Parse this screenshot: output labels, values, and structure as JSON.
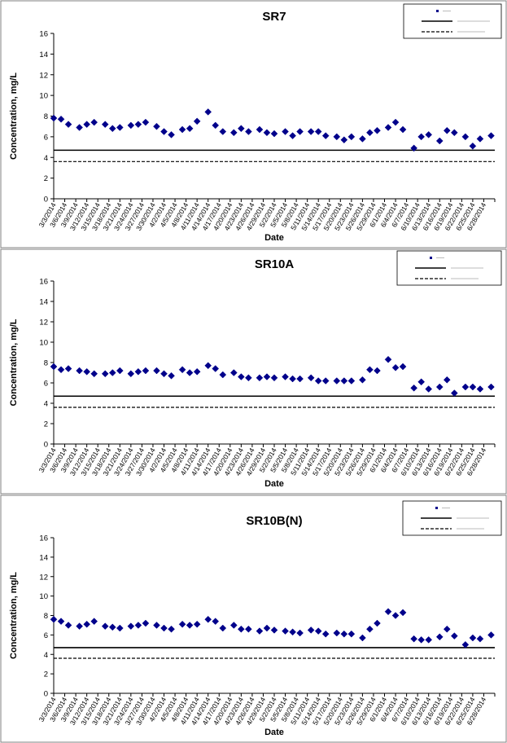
{
  "dates": [
    "3/3/2014",
    "3/6/2014",
    "3/9/2014",
    "3/12/2014",
    "3/15/2014",
    "3/18/2014",
    "3/21/2014",
    "3/24/2014",
    "3/27/2014",
    "3/30/2014",
    "4/2/2014",
    "4/5/2014",
    "4/8/2014",
    "4/11/2014",
    "4/14/2014",
    "4/17/2014",
    "4/20/2014",
    "4/23/2014",
    "4/26/2014",
    "4/29/2014",
    "5/2/2014",
    "5/5/2014",
    "5/8/2014",
    "5/11/2014",
    "5/14/2014",
    "5/17/2014",
    "5/20/2014",
    "5/23/2014",
    "5/26/2014",
    "5/29/2014",
    "6/1/2014",
    "6/4/2014",
    "6/7/2014",
    "6/10/2014",
    "6/13/2014",
    "6/16/2014",
    "6/19/2014",
    "6/22/2014",
    "6/25/2014",
    "6/28/2014"
  ],
  "chart_data": [
    {
      "type": "scatter",
      "title": "SR7",
      "xlabel": "Date",
      "ylabel": "Concentration, mg/L",
      "ylim": [
        0,
        16
      ],
      "yticks": [
        0,
        2,
        4,
        6,
        8,
        10,
        12,
        14,
        16
      ],
      "xlim": [
        "3/3/2014",
        "7/1/2014"
      ],
      "grid": false,
      "legend": "top-right",
      "marker_color": "#00008b",
      "reference_lines": [
        {
          "style": "solid",
          "y": 4.7
        },
        {
          "style": "dashed",
          "y": 3.6
        }
      ],
      "points": [
        [
          "3/3/2014",
          7.8
        ],
        [
          "3/5/2014",
          7.7
        ],
        [
          "3/7/2014",
          7.2
        ],
        [
          "3/10/2014",
          6.9
        ],
        [
          "3/12/2014",
          7.2
        ],
        [
          "3/14/2014",
          7.4
        ],
        [
          "3/17/2014",
          7.2
        ],
        [
          "3/19/2014",
          6.8
        ],
        [
          "3/21/2014",
          6.9
        ],
        [
          "3/24/2014",
          7.1
        ],
        [
          "3/26/2014",
          7.2
        ],
        [
          "3/28/2014",
          7.4
        ],
        [
          "3/31/2014",
          7.0
        ],
        [
          "4/2/2014",
          6.5
        ],
        [
          "4/4/2014",
          6.2
        ],
        [
          "4/7/2014",
          6.7
        ],
        [
          "4/9/2014",
          6.8
        ],
        [
          "4/11/2014",
          7.5
        ],
        [
          "4/14/2014",
          8.4
        ],
        [
          "4/16/2014",
          7.1
        ],
        [
          "4/18/2014",
          6.5
        ],
        [
          "4/21/2014",
          6.4
        ],
        [
          "4/23/2014",
          6.8
        ],
        [
          "4/25/2014",
          6.5
        ],
        [
          "4/28/2014",
          6.7
        ],
        [
          "4/30/2014",
          6.4
        ],
        [
          "5/2/2014",
          6.3
        ],
        [
          "5/5/2014",
          6.5
        ],
        [
          "5/7/2014",
          6.1
        ],
        [
          "5/9/2014",
          6.5
        ],
        [
          "5/12/2014",
          6.5
        ],
        [
          "5/14/2014",
          6.5
        ],
        [
          "5/16/2014",
          6.1
        ],
        [
          "5/19/2014",
          6.0
        ],
        [
          "5/21/2014",
          5.7
        ],
        [
          "5/23/2014",
          6.0
        ],
        [
          "5/26/2014",
          5.8
        ],
        [
          "5/28/2014",
          6.4
        ],
        [
          "5/30/2014",
          6.6
        ],
        [
          "6/2/2014",
          6.9
        ],
        [
          "6/4/2014",
          7.4
        ],
        [
          "6/6/2014",
          6.7
        ],
        [
          "6/9/2014",
          4.9
        ],
        [
          "6/11/2014",
          6.0
        ],
        [
          "6/13/2014",
          6.2
        ],
        [
          "6/16/2014",
          5.6
        ],
        [
          "6/18/2014",
          6.6
        ],
        [
          "6/20/2014",
          6.4
        ],
        [
          "6/23/2014",
          6.0
        ],
        [
          "6/25/2014",
          5.1
        ],
        [
          "6/27/2014",
          5.8
        ],
        [
          "6/30/2014",
          6.1
        ]
      ]
    },
    {
      "type": "scatter",
      "title": "SR10A",
      "xlabel": "Date",
      "ylabel": "Concentration, mg/L",
      "ylim": [
        0,
        16
      ],
      "yticks": [
        0,
        2,
        4,
        6,
        8,
        10,
        12,
        14,
        16
      ],
      "xlim": [
        "3/3/2014",
        "7/1/2014"
      ],
      "grid": false,
      "legend": "top-right",
      "marker_color": "#00008b",
      "reference_lines": [
        {
          "style": "solid",
          "y": 4.7
        },
        {
          "style": "dashed",
          "y": 3.6
        }
      ],
      "points": [
        [
          "3/3/2014",
          7.6
        ],
        [
          "3/5/2014",
          7.3
        ],
        [
          "3/7/2014",
          7.4
        ],
        [
          "3/10/2014",
          7.2
        ],
        [
          "3/12/2014",
          7.1
        ],
        [
          "3/14/2014",
          6.9
        ],
        [
          "3/17/2014",
          6.9
        ],
        [
          "3/19/2014",
          7.0
        ],
        [
          "3/21/2014",
          7.2
        ],
        [
          "3/24/2014",
          6.9
        ],
        [
          "3/26/2014",
          7.1
        ],
        [
          "3/28/2014",
          7.2
        ],
        [
          "3/31/2014",
          7.2
        ],
        [
          "4/2/2014",
          6.9
        ],
        [
          "4/4/2014",
          6.7
        ],
        [
          "4/7/2014",
          7.3
        ],
        [
          "4/9/2014",
          7.0
        ],
        [
          "4/11/2014",
          7.1
        ],
        [
          "4/14/2014",
          7.7
        ],
        [
          "4/16/2014",
          7.4
        ],
        [
          "4/18/2014",
          6.8
        ],
        [
          "4/21/2014",
          7.0
        ],
        [
          "4/23/2014",
          6.6
        ],
        [
          "4/25/2014",
          6.5
        ],
        [
          "4/28/2014",
          6.5
        ],
        [
          "4/30/2014",
          6.6
        ],
        [
          "5/2/2014",
          6.5
        ],
        [
          "5/5/2014",
          6.6
        ],
        [
          "5/7/2014",
          6.4
        ],
        [
          "5/9/2014",
          6.4
        ],
        [
          "5/12/2014",
          6.5
        ],
        [
          "5/14/2014",
          6.2
        ],
        [
          "5/16/2014",
          6.2
        ],
        [
          "5/19/2014",
          6.2
        ],
        [
          "5/21/2014",
          6.2
        ],
        [
          "5/23/2014",
          6.2
        ],
        [
          "5/26/2014",
          6.3
        ],
        [
          "5/28/2014",
          7.3
        ],
        [
          "5/30/2014",
          7.2
        ],
        [
          "6/2/2014",
          8.3
        ],
        [
          "6/4/2014",
          7.5
        ],
        [
          "6/6/2014",
          7.6
        ],
        [
          "6/9/2014",
          5.5
        ],
        [
          "6/11/2014",
          6.1
        ],
        [
          "6/13/2014",
          5.4
        ],
        [
          "6/16/2014",
          5.6
        ],
        [
          "6/18/2014",
          6.3
        ],
        [
          "6/20/2014",
          5.0
        ],
        [
          "6/23/2014",
          5.6
        ],
        [
          "6/25/2014",
          5.6
        ],
        [
          "6/27/2014",
          5.4
        ],
        [
          "6/30/2014",
          5.6
        ]
      ]
    },
    {
      "type": "scatter",
      "title": "SR10B(N)",
      "xlabel": "Date",
      "ylabel": "Concentration, mg/L",
      "ylim": [
        0,
        16
      ],
      "yticks": [
        0,
        2,
        4,
        6,
        8,
        10,
        12,
        14,
        16
      ],
      "xlim": [
        "3/3/2014",
        "7/1/2014"
      ],
      "grid": false,
      "legend": "top-right",
      "marker_color": "#00008b",
      "reference_lines": [
        {
          "style": "solid",
          "y": 4.7
        },
        {
          "style": "dashed",
          "y": 3.6
        }
      ],
      "points": [
        [
          "3/3/2014",
          7.6
        ],
        [
          "3/5/2014",
          7.4
        ],
        [
          "3/7/2014",
          7.0
        ],
        [
          "3/10/2014",
          6.9
        ],
        [
          "3/12/2014",
          7.1
        ],
        [
          "3/14/2014",
          7.4
        ],
        [
          "3/17/2014",
          6.9
        ],
        [
          "3/19/2014",
          6.8
        ],
        [
          "3/21/2014",
          6.7
        ],
        [
          "3/24/2014",
          6.9
        ],
        [
          "3/26/2014",
          7.0
        ],
        [
          "3/28/2014",
          7.2
        ],
        [
          "3/31/2014",
          7.0
        ],
        [
          "4/2/2014",
          6.7
        ],
        [
          "4/4/2014",
          6.6
        ],
        [
          "4/7/2014",
          7.1
        ],
        [
          "4/9/2014",
          7.0
        ],
        [
          "4/11/2014",
          7.1
        ],
        [
          "4/14/2014",
          7.6
        ],
        [
          "4/16/2014",
          7.4
        ],
        [
          "4/18/2014",
          6.7
        ],
        [
          "4/21/2014",
          7.0
        ],
        [
          "4/23/2014",
          6.6
        ],
        [
          "4/25/2014",
          6.6
        ],
        [
          "4/28/2014",
          6.4
        ],
        [
          "4/30/2014",
          6.7
        ],
        [
          "5/2/2014",
          6.5
        ],
        [
          "5/5/2014",
          6.4
        ],
        [
          "5/7/2014",
          6.3
        ],
        [
          "5/9/2014",
          6.2
        ],
        [
          "5/12/2014",
          6.5
        ],
        [
          "5/14/2014",
          6.4
        ],
        [
          "5/16/2014",
          6.1
        ],
        [
          "5/19/2014",
          6.2
        ],
        [
          "5/21/2014",
          6.1
        ],
        [
          "5/23/2014",
          6.1
        ],
        [
          "5/26/2014",
          5.7
        ],
        [
          "5/28/2014",
          6.6
        ],
        [
          "5/30/2014",
          7.2
        ],
        [
          "6/2/2014",
          8.4
        ],
        [
          "6/4/2014",
          8.0
        ],
        [
          "6/6/2014",
          8.3
        ],
        [
          "6/9/2014",
          5.6
        ],
        [
          "6/11/2014",
          5.5
        ],
        [
          "6/13/2014",
          5.5
        ],
        [
          "6/16/2014",
          5.8
        ],
        [
          "6/18/2014",
          6.6
        ],
        [
          "6/20/2014",
          5.9
        ],
        [
          "6/23/2014",
          5.0
        ],
        [
          "6/25/2014",
          5.7
        ],
        [
          "6/27/2014",
          5.6
        ],
        [
          "6/30/2014",
          6.0
        ]
      ]
    }
  ]
}
